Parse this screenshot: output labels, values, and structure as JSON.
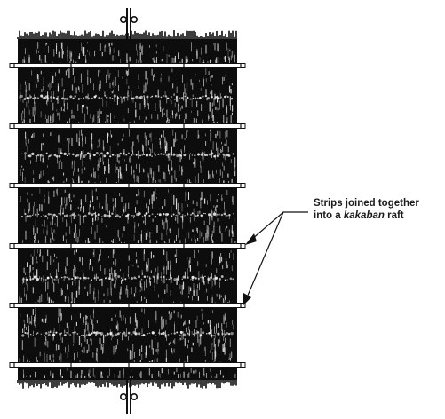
{
  "annotation": {
    "line1": "Strips joined together",
    "line2_prefix": "into a ",
    "line2_term": "kakaban",
    "line2_suffix": " raft"
  },
  "raft": {
    "strip_count": 7,
    "crossbar_count": 6,
    "stake_count": 2,
    "colors": {
      "seaweed": "#0d0d0d",
      "crossbar_fill": "#ffffff",
      "crossbar_stroke": "#111111",
      "background": "#ffffff"
    }
  }
}
